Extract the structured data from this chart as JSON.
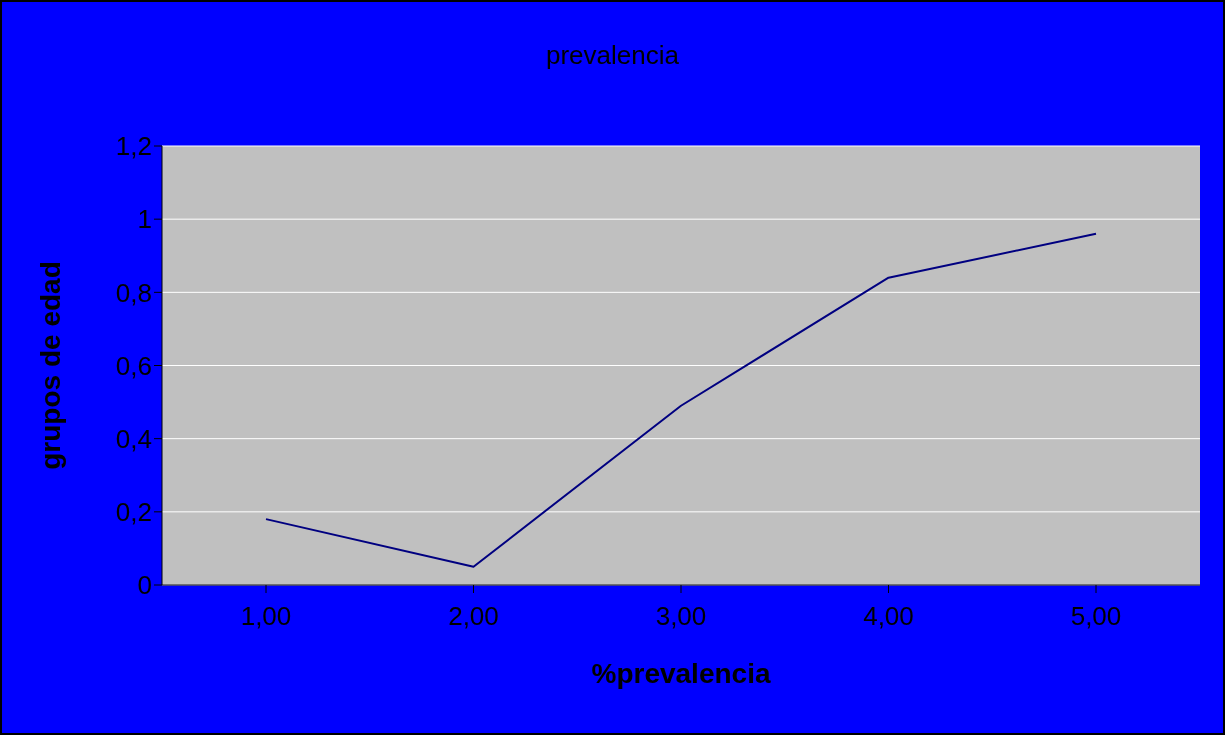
{
  "chart_data": {
    "type": "line",
    "title": "prevalencia",
    "xlabel": "%prevalencia",
    "ylabel": "grupos de edad",
    "categories": [
      "1,00",
      "2,00",
      "3,00",
      "4,00",
      "5,00"
    ],
    "series": [
      {
        "color": "#000080",
        "values": [
          0.18,
          0.05,
          0.49,
          0.84,
          0.96
        ]
      }
    ],
    "ylim": [
      0,
      1.2
    ],
    "yticks": [
      0,
      {
        "value": 0.2,
        "label": "0,2"
      },
      {
        "value": 0.4,
        "label": "0,4"
      },
      {
        "value": 0.6,
        "label": "0,6"
      },
      {
        "value": 0.8,
        "label": "0,8"
      },
      1,
      {
        "value": 1.2,
        "label": "1,2"
      }
    ],
    "grid": "y",
    "legend": false,
    "marker": "none",
    "line_style": "solid"
  }
}
